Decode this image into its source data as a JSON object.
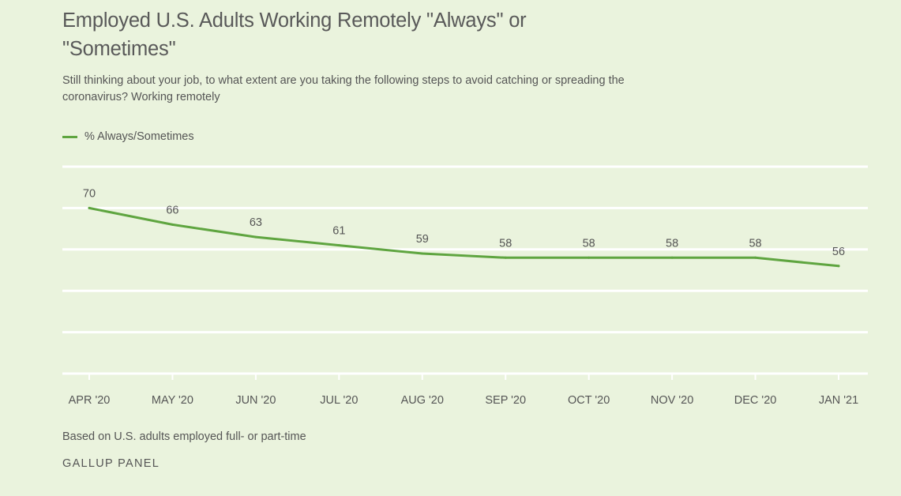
{
  "title": "Employed U.S. Adults Working Remotely \"Always\" or \"Sometimes\"",
  "subtitle": "Still thinking about your job, to what extent are you taking the following steps to avoid catching or spreading the coronavirus? Working remotely",
  "note": "Based on U.S. adults employed full- or part-time",
  "source": "GALLUP PANEL",
  "colors": {
    "line": "#5fa540",
    "grid": "#ffffff",
    "text": "#555555",
    "background": "#eaf3dd"
  },
  "chart_data": {
    "type": "line",
    "categories": [
      "APR '20",
      "MAY '20",
      "JUN '20",
      "JUL '20",
      "AUG '20",
      "SEP '20",
      "OCT '20",
      "NOV '20",
      "DEC '20",
      "JAN '21"
    ],
    "series": [
      {
        "name": "% Always/Sometimes",
        "values": [
          70,
          66,
          63,
          61,
          59,
          58,
          58,
          58,
          58,
          56
        ]
      }
    ],
    "data_labels": true,
    "ylim": [
      30,
      80
    ],
    "y_gridlines": [
      30,
      40,
      50,
      60,
      70,
      80
    ],
    "grid": true,
    "legend_position": "top-left"
  }
}
